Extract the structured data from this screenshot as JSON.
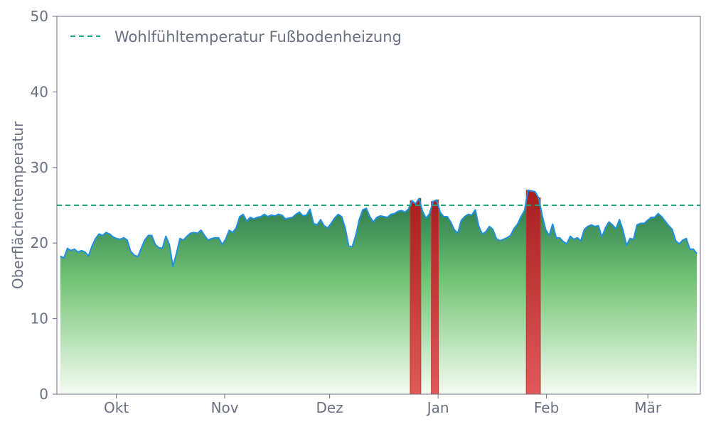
{
  "chart_data": {
    "type": "area",
    "ylabel": "Oberflächentemperatur",
    "xlabel": "",
    "ylim": [
      0,
      50
    ],
    "yticks": [
      0,
      10,
      20,
      30,
      40,
      50
    ],
    "xlim": [
      "2023-09-14",
      "2024-03-16"
    ],
    "xticks": [
      {
        "label": "Okt",
        "date": "2023-10-01"
      },
      {
        "label": "Nov",
        "date": "2023-11-01"
      },
      {
        "label": "Dez",
        "date": "2023-12-01"
      },
      {
        "label": "Jan",
        "date": "2024-01-01"
      },
      {
        "label": "Feb",
        "date": "2024-02-01"
      },
      {
        "label": "Mär",
        "date": "2024-03-01"
      }
    ],
    "threshold": {
      "name": "Wohlfühltemperatur Fußbodenheizung",
      "value": 25
    },
    "legend_position": "top-left",
    "x_start": "2023-09-15",
    "x_end": "2024-03-15",
    "values": [
      18.3,
      18.0,
      19.3,
      19.0,
      19.2,
      18.8,
      19.0,
      18.8,
      18.3,
      19.6,
      20.6,
      21.2,
      21.0,
      21.4,
      21.2,
      20.8,
      20.6,
      20.5,
      20.7,
      20.4,
      18.9,
      18.4,
      18.2,
      19.3,
      20.4,
      21.0,
      21.0,
      19.8,
      19.4,
      19.3,
      20.9,
      19.8,
      16.9,
      18.6,
      20.6,
      20.4,
      20.9,
      21.3,
      21.4,
      21.3,
      21.7,
      21.0,
      20.4,
      20.6,
      20.7,
      20.7,
      19.8,
      20.5,
      21.7,
      21.4,
      22.0,
      23.5,
      23.8,
      22.9,
      23.4,
      23.2,
      23.4,
      23.5,
      23.8,
      23.5,
      23.7,
      23.6,
      23.8,
      23.7,
      23.2,
      23.3,
      23.4,
      23.8,
      24.1,
      23.6,
      23.7,
      24.5,
      22.6,
      22.4,
      23.1,
      22.3,
      22.0,
      22.6,
      23.3,
      23.8,
      23.5,
      22.0,
      19.6,
      19.5,
      21.0,
      23.1,
      24.4,
      24.6,
      23.5,
      22.8,
      23.4,
      23.6,
      23.5,
      23.4,
      23.8,
      23.9,
      24.2,
      24.3,
      24.1,
      24.5,
      25.6,
      25.2,
      25.9,
      24.2,
      23.3,
      23.9,
      25.5,
      25.7,
      24.1,
      23.5,
      23.5,
      22.8,
      21.8,
      21.3,
      23.0,
      23.5,
      23.8,
      23.7,
      24.4,
      22.2,
      21.2,
      21.5,
      22.2,
      21.8,
      20.6,
      20.3,
      20.5,
      20.7,
      21.0,
      21.9,
      22.5,
      23.5,
      24.3,
      27.0,
      26.9,
      26.8,
      26.0,
      23.7,
      21.8,
      21.0,
      22.5,
      20.7,
      20.7,
      20.2,
      19.9,
      20.9,
      20.5,
      20.7,
      20.3,
      21.8,
      22.2,
      22.4,
      22.2,
      22.3,
      20.8,
      22.0,
      22.8,
      22.4,
      21.9,
      23.1,
      21.7,
      19.7,
      20.6,
      20.5,
      22.4,
      22.6,
      22.6,
      23.0,
      23.4,
      23.4,
      23.9,
      23.5,
      22.9,
      22.3,
      21.8,
      20.3,
      19.9,
      20.4,
      20.6,
      19.2,
      19.2,
      18.6
    ]
  }
}
